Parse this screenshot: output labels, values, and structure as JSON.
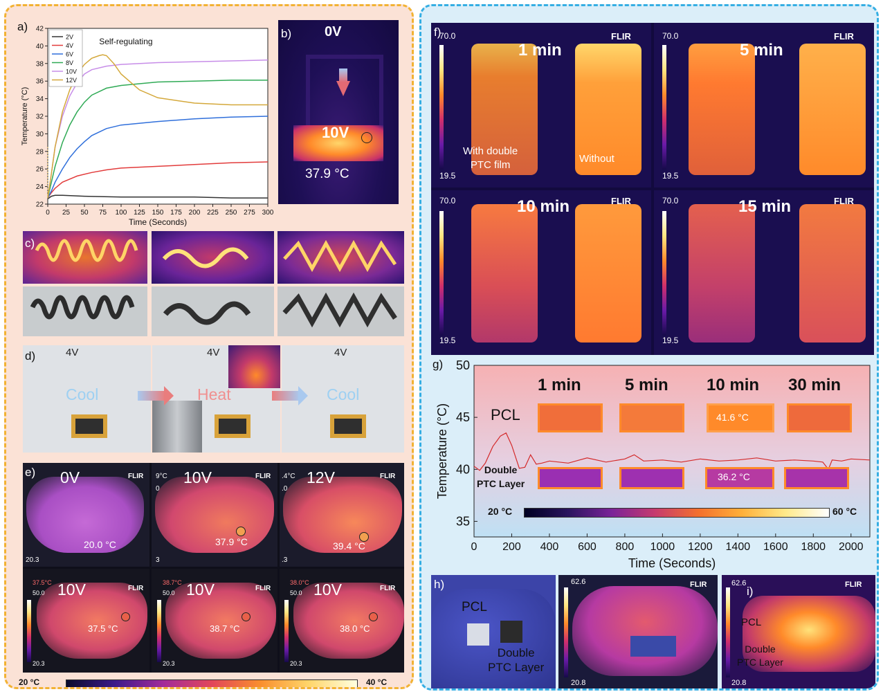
{
  "panel_a": {
    "label": "a)",
    "annotation": "Self-regulating",
    "chart_data": {
      "type": "line",
      "xlabel": "Time (Seconds)",
      "ylabel": "Temperature (°C)",
      "xlim": [
        0,
        300
      ],
      "ylim": [
        22,
        42
      ],
      "xticks": [
        0,
        25,
        50,
        75,
        100,
        125,
        150,
        175,
        200,
        225,
        250,
        275,
        300
      ],
      "yticks": [
        22,
        24,
        26,
        28,
        30,
        32,
        34,
        36,
        38,
        40,
        42
      ],
      "legend_position": "top-left",
      "series": [
        {
          "name": "2V",
          "color": "#333333",
          "x": [
            0,
            5,
            10,
            20,
            50,
            100,
            150,
            200,
            250,
            300
          ],
          "y": [
            22.6,
            22.9,
            23.0,
            23.0,
            22.9,
            22.8,
            22.8,
            22.8,
            22.7,
            22.7
          ]
        },
        {
          "name": "4V",
          "color": "#e23b3b",
          "x": [
            0,
            5,
            10,
            20,
            40,
            60,
            80,
            100,
            150,
            200,
            250,
            300
          ],
          "y": [
            22.7,
            23.3,
            23.8,
            24.5,
            25.2,
            25.6,
            25.9,
            26.1,
            26.3,
            26.5,
            26.7,
            26.8
          ]
        },
        {
          "name": "6V",
          "color": "#2f6fdb",
          "x": [
            0,
            5,
            10,
            20,
            30,
            40,
            50,
            60,
            80,
            100,
            150,
            200,
            250,
            300
          ],
          "y": [
            22.7,
            23.5,
            24.5,
            26.0,
            27.3,
            28.3,
            29.1,
            29.8,
            30.6,
            31.0,
            31.4,
            31.7,
            31.9,
            32.0
          ]
        },
        {
          "name": "8V",
          "color": "#2faa55",
          "x": [
            0,
            5,
            10,
            20,
            30,
            40,
            50,
            60,
            80,
            100,
            150,
            200,
            250,
            300
          ],
          "y": [
            22.7,
            24.5,
            26.3,
            29.0,
            31.0,
            32.5,
            33.6,
            34.4,
            35.2,
            35.5,
            35.9,
            36.0,
            36.1,
            36.1
          ]
        },
        {
          "name": "10V",
          "color": "#c78de8",
          "x": [
            0,
            5,
            10,
            20,
            30,
            40,
            50,
            60,
            80,
            100,
            150,
            200,
            250,
            300
          ],
          "y": [
            22.7,
            25.5,
            28.5,
            32.0,
            34.3,
            35.8,
            36.8,
            37.3,
            37.7,
            37.9,
            38.1,
            38.2,
            38.3,
            38.4
          ]
        },
        {
          "name": "12V",
          "color": "#d4a83a",
          "x": [
            0,
            5,
            10,
            20,
            30,
            40,
            50,
            60,
            70,
            75,
            80,
            90,
            100,
            125,
            150,
            200,
            250,
            300
          ],
          "y": [
            22.7,
            25.5,
            28.5,
            32.5,
            35.0,
            36.8,
            37.9,
            38.6,
            38.9,
            39.0,
            38.9,
            38.0,
            36.8,
            35.0,
            34.1,
            33.5,
            33.3,
            33.3
          ]
        }
      ]
    }
  },
  "panel_b": {
    "label": "b)",
    "top_text": "0V",
    "mid_text": "10V",
    "temp_text": "37.9 °C"
  },
  "panel_c": {
    "label": "c)"
  },
  "panel_d": {
    "label": "d)",
    "voltage": "4V",
    "cool1": "Cool",
    "heat": "Heat",
    "cool2": "Cool"
  },
  "panel_e": {
    "label": "e)",
    "top_row": [
      {
        "voltage": "0V",
        "temp": "20.0 °C",
        "corner": "20.3",
        "edge_top": "",
        "edge_mid": ""
      },
      {
        "voltage": "10V",
        "temp": "37.9 °C",
        "corner": "3",
        "edge_top": "9°C",
        "edge_mid": "0"
      },
      {
        "voltage": "12V",
        "temp": "39.4 °C",
        "corner": ".3",
        "edge_top": ".4°C",
        "edge_mid": ".0"
      }
    ],
    "bottom_row": [
      {
        "voltage": "10V",
        "temp": "37.5 °C",
        "spot": "37.5°C",
        "max": "50.0",
        "min": "20.3"
      },
      {
        "voltage": "10V",
        "temp": "38.7 °C",
        "spot": "38.7°C",
        "max": "50.0",
        "min": "20.3"
      },
      {
        "voltage": "10V",
        "temp": "38.0 °C",
        "spot": "38.0°C",
        "max": "50.0",
        "min": "20.3"
      }
    ],
    "scale_min": "20 °C",
    "scale_max": "40 °C",
    "brand": "FLIR"
  },
  "panel_f": {
    "label": "f)",
    "brand": "FLIR",
    "max": "70.0",
    "min": "19.5",
    "frames": [
      "1 min",
      "5 min",
      "10 min",
      "15 min"
    ],
    "with_label": "With double\nPTC film",
    "without_label": "Without"
  },
  "panel_g": {
    "label": "g)",
    "series_top": "PCL",
    "series_bottom": "Double\nPTC Layer",
    "times": [
      "1 min",
      "5 min",
      "10 min",
      "30 min"
    ],
    "pcl_inset_temp": "41.6 °C",
    "ptc_inset_temp": "36.2 °C",
    "scale_min": "20 °C",
    "scale_max": "60 °C",
    "chart_data": {
      "type": "line",
      "xlabel": "Time (Seconds)",
      "ylabel": "Temperature (°C)",
      "xlim": [
        0,
        2100
      ],
      "ylim": [
        33.5,
        50
      ],
      "xticks": [
        0,
        200,
        400,
        600,
        800,
        1000,
        1200,
        1400,
        1600,
        1800,
        2000
      ],
      "yticks": [
        35,
        40,
        45,
        50
      ],
      "series": [
        {
          "color": "#d42a2a",
          "x": [
            0,
            30,
            60,
            100,
            140,
            170,
            200,
            240,
            270,
            300,
            330,
            360,
            400,
            500,
            600,
            700,
            800,
            850,
            900,
            1000,
            1100,
            1200,
            1300,
            1400,
            1500,
            1600,
            1700,
            1800,
            1850,
            1880,
            1900,
            1950,
            2000,
            2100
          ],
          "y": [
            40.3,
            39.9,
            40.6,
            42.2,
            43.2,
            43.5,
            42.3,
            40.1,
            40.2,
            41.4,
            40.5,
            40.6,
            40.8,
            40.6,
            41.1,
            40.7,
            41.0,
            41.4,
            40.8,
            40.9,
            40.7,
            41.0,
            40.8,
            40.9,
            41.1,
            40.8,
            40.9,
            40.8,
            40.7,
            40.0,
            40.9,
            40.8,
            41.0,
            40.9
          ]
        }
      ]
    }
  },
  "panel_h": {
    "label": "h)",
    "pcl": "PCL",
    "ptc": "Double\nPTC Layer",
    "max": "62.6",
    "min": "20.8",
    "brand": "FLIR"
  },
  "panel_i": {
    "label": "i)",
    "pcl": "PCL",
    "ptc": "Double\nPTC Layer",
    "max": "62.6",
    "min": "20.8",
    "brand": "FLIR"
  }
}
